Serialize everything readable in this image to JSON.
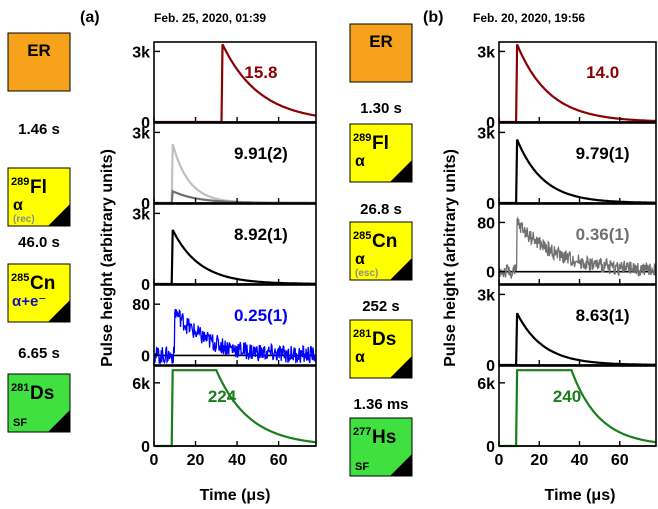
{
  "colors": {
    "er": "#F7A21B",
    "alpha": "#FFFF00",
    "sf": "#3FE03F",
    "red": "#8B0000",
    "blue": "#0000FF",
    "gray": "#707070",
    "lightgray": "#C0C0C0",
    "green": "#1A7F1A",
    "black": "#000000"
  },
  "decay_chain_a": {
    "label": "(a)",
    "date": "Feb. 25, 2020, 01:39",
    "boxes": [
      {
        "mass": "",
        "symbol": "ER",
        "mode": "",
        "note": "",
        "color": "er"
      },
      {
        "mass": "289",
        "symbol": "Fl",
        "mode": "α",
        "note": "(rec)",
        "color": "alpha"
      },
      {
        "mass": "285",
        "symbol": "Cn",
        "mode": "α+e⁻",
        "note": "",
        "color": "alpha"
      },
      {
        "mass": "281",
        "symbol": "Ds",
        "mode": "SF",
        "note": "",
        "color": "sf"
      }
    ],
    "times": [
      "1.46 s",
      "46.0 s",
      "6.65 s"
    ]
  },
  "decay_chain_b": {
    "label": "(b)",
    "date": "Feb. 20, 2020, 19:56",
    "boxes": [
      {
        "mass": "",
        "symbol": "ER",
        "mode": "",
        "note": "",
        "color": "er"
      },
      {
        "mass": "289",
        "symbol": "Fl",
        "mode": "α",
        "note": "",
        "color": "alpha"
      },
      {
        "mass": "285",
        "symbol": "Cn",
        "mode": "α",
        "note": "(esc)",
        "color": "alpha"
      },
      {
        "mass": "281",
        "symbol": "Ds",
        "mode": "α",
        "note": "",
        "color": "alpha"
      },
      {
        "mass": "277",
        "symbol": "Hs",
        "mode": "SF",
        "note": "",
        "color": "sf"
      }
    ],
    "times": [
      "1.30 s",
      "26.8 s",
      "252 s",
      "1.36 ms"
    ]
  },
  "chart_data": [
    {
      "type": "line",
      "panel": "a",
      "xlabel": "Time (μs)",
      "ylabel": "Pulse height (arbitrary units)",
      "x_ticks": [
        0,
        20,
        40,
        60
      ],
      "xlim": [
        0,
        78
      ],
      "subplots": [
        {
          "value_label": "15.8",
          "color": "red",
          "ylim": [
            0,
            3400
          ],
          "y_ticks": [
            "0",
            "3k"
          ],
          "y_tick_values": [
            0,
            3000
          ],
          "series": [
            {
              "t0": 33,
              "amplitude": 3300,
              "tau": 18,
              "noise": 0,
              "color": "red"
            }
          ]
        },
        {
          "value_label": "9.91(2)",
          "color": "black",
          "ylim": [
            0,
            3400
          ],
          "y_ticks": [
            "0",
            "3k"
          ],
          "y_tick_values": [
            0,
            3000
          ],
          "series": [
            {
              "t0": 9,
              "amplitude": 2500,
              "tau": 8,
              "noise": 0,
              "color": "lightgray"
            },
            {
              "t0": 9,
              "amplitude": 500,
              "tau": 12,
              "noise": 0,
              "color": "gray"
            }
          ]
        },
        {
          "value_label": "8.92(1)",
          "color": "black",
          "ylim": [
            0,
            3400
          ],
          "y_ticks": [
            "0",
            "3k"
          ],
          "y_tick_values": [
            0,
            3000
          ],
          "series": [
            {
              "t0": 9,
              "amplitude": 2300,
              "tau": 13,
              "noise": 0,
              "color": "black"
            }
          ]
        },
        {
          "value_label": "0.25(1)",
          "color": "blue",
          "ylim": [
            -15,
            110
          ],
          "y_ticks": [
            "0",
            "80"
          ],
          "y_tick_values": [
            0,
            80
          ],
          "series": [
            {
              "t0": 10,
              "amplitude": 70,
              "tau": 15,
              "noise": 14,
              "color": "blue"
            }
          ]
        },
        {
          "value_label": "224",
          "color": "green",
          "ylim": [
            0,
            7600
          ],
          "y_ticks": [
            "0",
            "6k"
          ],
          "y_tick_values": [
            0,
            6000
          ],
          "series": [
            {
              "t0": 9,
              "amplitude": 7200,
              "tau": 16,
              "flat_until": 30,
              "noise": 0,
              "color": "green"
            }
          ]
        }
      ]
    },
    {
      "type": "line",
      "panel": "b",
      "xlabel": "Time (μs)",
      "ylabel": "Pulse height (arbitrary units)",
      "x_ticks": [
        0,
        20,
        40,
        60
      ],
      "xlim": [
        0,
        78
      ],
      "subplots": [
        {
          "value_label": "14.0",
          "color": "red",
          "ylim": [
            0,
            3400
          ],
          "y_ticks": [
            "0",
            "3k"
          ],
          "y_tick_values": [
            0,
            3000
          ],
          "series": [
            {
              "t0": 9,
              "amplitude": 3300,
              "tau": 16,
              "noise": 0,
              "color": "red"
            }
          ]
        },
        {
          "value_label": "9.79(1)",
          "color": "black",
          "ylim": [
            0,
            3400
          ],
          "y_ticks": [
            "0",
            "3k"
          ],
          "y_tick_values": [
            0,
            3000
          ],
          "series": [
            {
              "t0": 9,
              "amplitude": 2700,
              "tau": 13,
              "noise": 0,
              "color": "black"
            }
          ]
        },
        {
          "value_label": "0.36(1)",
          "color": "gray",
          "ylim": [
            -20,
            110
          ],
          "y_ticks": [
            "0",
            "80"
          ],
          "y_tick_values": [
            0,
            80
          ],
          "series": [
            {
              "t0": 9,
              "amplitude": 80,
              "tau": 20,
              "noise": 12,
              "color": "gray"
            }
          ]
        },
        {
          "value_label": "8.63(1)",
          "color": "black",
          "ylim": [
            0,
            3400
          ],
          "y_ticks": [
            "0",
            "3k"
          ],
          "y_tick_values": [
            0,
            3000
          ],
          "series": [
            {
              "t0": 9,
              "amplitude": 2200,
              "tau": 13,
              "noise": 0,
              "color": "black"
            }
          ]
        },
        {
          "value_label": "240",
          "color": "green",
          "ylim": [
            0,
            7600
          ],
          "y_ticks": [
            "0",
            "6k"
          ],
          "y_tick_values": [
            0,
            6000
          ],
          "series": [
            {
              "t0": 9,
              "amplitude": 7200,
              "tau": 14,
              "flat_until": 36,
              "noise": 0,
              "color": "green"
            }
          ]
        }
      ]
    }
  ]
}
